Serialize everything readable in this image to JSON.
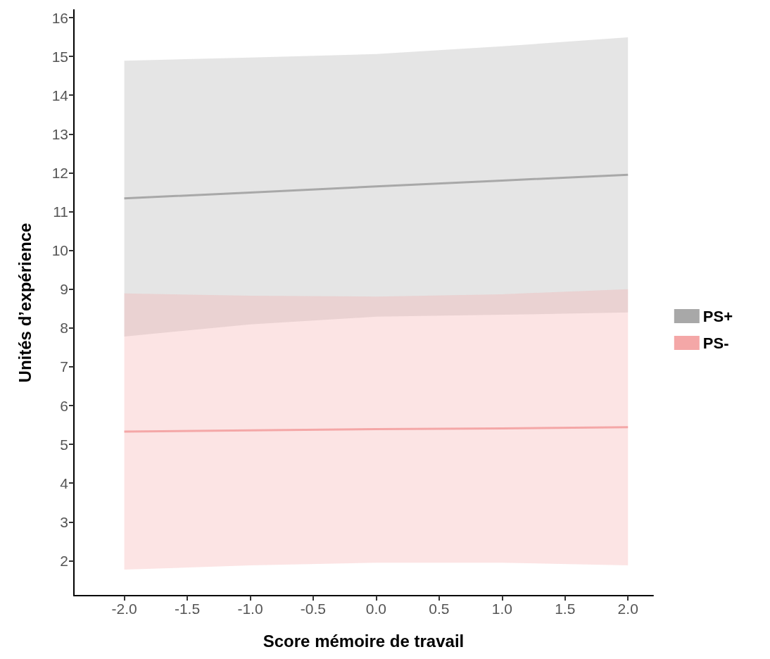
{
  "chart_data": {
    "type": "line",
    "xlabel": "Score mémoire de travail",
    "ylabel": "Unités d’expérience",
    "x": [
      -2,
      -1,
      0,
      1,
      2
    ],
    "series": [
      {
        "name": "PS+",
        "color": "#a8a8a8",
        "values": [
          11.34,
          11.49,
          11.65,
          11.8,
          11.95
        ],
        "lower": [
          7.78,
          8.09,
          8.29,
          8.34,
          8.4
        ],
        "upper": [
          14.89,
          14.97,
          15.06,
          15.26,
          15.49
        ]
      },
      {
        "name": "PS-",
        "color": "#f4a7a7",
        "values": [
          5.33,
          5.36,
          5.39,
          5.41,
          5.44
        ],
        "lower": [
          1.77,
          1.88,
          1.95,
          1.95,
          1.88
        ],
        "upper": [
          8.89,
          8.83,
          8.81,
          8.87,
          9.0
        ]
      }
    ],
    "xlim": [
      -2.4,
      2.2
    ],
    "ylim": [
      1.1,
      16.2
    ],
    "xticks": [
      {
        "value": -2,
        "label": "-2.0"
      },
      {
        "value": -1.5,
        "label": "-1.5"
      },
      {
        "value": -1,
        "label": "-1.0"
      },
      {
        "value": -0.5,
        "label": "-0.5"
      },
      {
        "value": 0,
        "label": "0.0"
      },
      {
        "value": 0.5,
        "label": "0.5"
      },
      {
        "value": 1,
        "label": "1.0"
      },
      {
        "value": 1.5,
        "label": "1.5"
      },
      {
        "value": 2,
        "label": "2.0"
      }
    ],
    "yticks": [
      2,
      3,
      4,
      5,
      6,
      7,
      8,
      9,
      10,
      11,
      12,
      13,
      14,
      15,
      16
    ],
    "grid": false,
    "legend": "right",
    "marker": "none",
    "line_style": "solid"
  }
}
